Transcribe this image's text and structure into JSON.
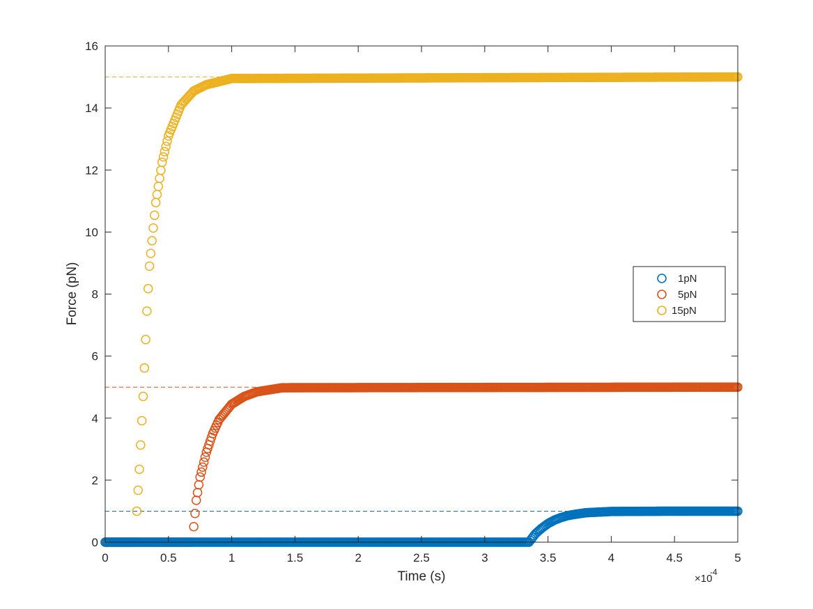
{
  "chart_data": {
    "type": "scatter",
    "title": "",
    "xlabel": "Time (s)",
    "ylabel": "Force (pN)",
    "xlim": [
      0,
      0.0005
    ],
    "ylim": [
      0,
      16
    ],
    "x_tick_labels": [
      "0",
      "0.5",
      "1",
      "1.5",
      "2",
      "2.5",
      "3",
      "3.5",
      "4",
      "4.5",
      "5"
    ],
    "y_tick_labels": [
      "0",
      "2",
      "4",
      "6",
      "8",
      "10",
      "12",
      "14",
      "16"
    ],
    "x_exponent_base": "×10",
    "x_exponent_power": "-4",
    "grid": false,
    "legend_position": "right",
    "marker": "open-circle",
    "series": [
      {
        "name": "1pN",
        "color": "#0072BD",
        "target": 1,
        "onset": 0.000335,
        "tau": 1.6e-05,
        "x": [
          0.00034,
          0.000345,
          0.00035,
          0.000355,
          0.00036,
          0.000365,
          0.00037,
          0.00038,
          0.00039,
          0.0004,
          0.00045,
          0.0005
        ],
        "y": [
          0.27,
          0.45,
          0.6,
          0.71,
          0.79,
          0.85,
          0.89,
          0.95,
          0.97,
          0.99,
          1.0,
          1.0
        ]
      },
      {
        "name": "5pN",
        "color": "#D95319",
        "target": 5,
        "onset": 6.9e-05,
        "tau": 1.4e-05,
        "x": [
          7e-05,
          7.2e-05,
          7.5e-05,
          8e-05,
          8.5e-05,
          9e-05,
          0.0001,
          0.00011,
          0.00012,
          0.00014,
          0.0005
        ],
        "y": [
          0.5,
          1.35,
          2.1,
          2.9,
          3.5,
          3.95,
          4.45,
          4.7,
          4.85,
          4.98,
          5.0
        ]
      },
      {
        "name": "15pN",
        "color": "#EDB120",
        "target": 15,
        "onset": 2.4e-05,
        "tau": 1.3e-05,
        "x": [
          2.5e-05,
          2.7e-05,
          3e-05,
          3.3e-05,
          3.5e-05,
          4e-05,
          4.5e-05,
          5e-05,
          6e-05,
          7e-05,
          8e-05,
          0.0001,
          0.0005
        ],
        "y": [
          1.0,
          2.35,
          4.7,
          7.45,
          8.9,
          10.95,
          12.25,
          13.1,
          14.1,
          14.55,
          14.75,
          14.95,
          15.0
        ]
      }
    ]
  }
}
